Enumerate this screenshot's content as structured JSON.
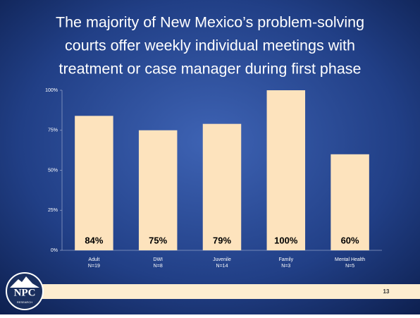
{
  "chart_data": {
    "type": "bar",
    "title_lines": [
      "The majority of New Mexico’s problem-solving",
      "courts offer weekly individual meetings with",
      "treatment or case manager during first phase"
    ],
    "categories": [
      "Adult",
      "DWI",
      "Juvenile",
      "Family",
      "Mental Health"
    ],
    "category_notes": [
      "N=19",
      "N=8",
      "N=14",
      "N=3",
      "N=5"
    ],
    "values": [
      84,
      75,
      79,
      100,
      60
    ],
    "value_labels": [
      "84%",
      "75%",
      "79%",
      "100%",
      "60%"
    ],
    "color": "#fde3bd",
    "ylim": [
      0,
      100
    ],
    "yticks": [
      {
        "value": 0,
        "label": "0%"
      },
      {
        "value": 25,
        "label": "25%"
      },
      {
        "value": 50,
        "label": "50%"
      },
      {
        "value": 75,
        "label": "75%"
      },
      {
        "value": 100,
        "label": "100%"
      }
    ],
    "grid": false
  },
  "footer": {
    "logo": "NPC",
    "logo_sub": "RESEARCH",
    "page_number": "13"
  }
}
